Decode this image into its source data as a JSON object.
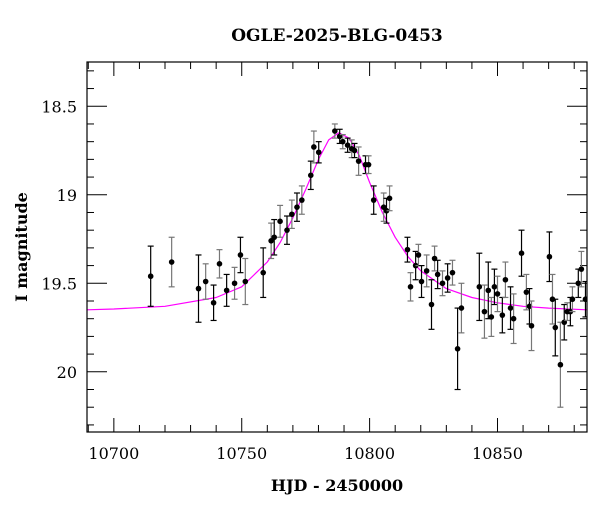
{
  "chart_data": {
    "type": "scatter",
    "title": "OGLE-2025-BLG-0453",
    "xlabel": "HJD - 2450000",
    "ylabel": "I magnitude",
    "xlim": [
      10689.5,
      10885
    ],
    "ylim": [
      20.34,
      18.25
    ],
    "y_inverted": true,
    "grid": false,
    "x_ticks": [
      "10700",
      "10750",
      "10800",
      "10850"
    ],
    "y_ticks": [
      "18.5",
      "19",
      "19.5",
      "20"
    ],
    "colors": {
      "points": "#000000",
      "errorbar_alt": "#777777",
      "model": "#ff00ff"
    },
    "series": [
      {
        "kind": "points-with-errorbars",
        "x": [
          10714.4,
          10722.6,
          10733.1,
          10735.9,
          10739.0,
          10741.3,
          10744.1,
          10747.2,
          10749.5,
          10751.4,
          10758.4,
          10761.5,
          10762.7,
          10765.0,
          10767.7,
          10769.6,
          10771.6,
          10773.5,
          10777.0,
          10778.2,
          10780.1,
          10786.4,
          10788.3,
          10789.5,
          10791.4,
          10793.0,
          10794.1,
          10795.7,
          10798.4,
          10799.6,
          10801.6,
          10805.5,
          10806.6,
          10807.8,
          10814.8,
          10816.0,
          10818.0,
          10819.1,
          10820.3,
          10822.3,
          10824.2,
          10825.4,
          10826.6,
          10828.5,
          10830.5,
          10832.4,
          10834.4,
          10835.9,
          10842.9,
          10844.9,
          10846.4,
          10847.6,
          10848.8,
          10850.0,
          10851.9,
          10853.1,
          10855.1,
          10856.3,
          10859.4,
          10861.3,
          10862.5,
          10863.3,
          10870.3,
          10871.5,
          10872.6,
          10874.6,
          10876.1,
          10877.3,
          10878.5,
          10879.3,
          10881.6,
          10882.8,
          10884.4
        ],
        "y": [
          19.46,
          19.38,
          19.53,
          19.49,
          19.61,
          19.39,
          19.54,
          19.5,
          19.34,
          19.49,
          19.44,
          19.26,
          19.24,
          19.15,
          19.2,
          19.11,
          19.07,
          19.03,
          18.89,
          18.73,
          18.76,
          18.64,
          18.67,
          18.7,
          18.72,
          18.74,
          18.75,
          18.81,
          18.83,
          18.83,
          19.03,
          19.07,
          19.09,
          19.02,
          19.31,
          19.52,
          19.4,
          19.34,
          19.49,
          19.43,
          19.62,
          19.36,
          19.45,
          19.5,
          19.47,
          19.44,
          19.87,
          19.64,
          19.52,
          19.66,
          19.54,
          19.69,
          19.52,
          19.56,
          19.68,
          19.48,
          19.64,
          19.7,
          19.33,
          19.55,
          19.63,
          19.74,
          19.35,
          19.59,
          19.75,
          19.96,
          19.72,
          19.66,
          19.66,
          19.59,
          19.5,
          19.42,
          19.59
        ],
        "err": [
          0.17,
          0.14,
          0.19,
          0.1,
          0.1,
          0.08,
          0.09,
          0.09,
          0.1,
          0.13,
          0.14,
          0.1,
          0.1,
          0.09,
          0.08,
          0.08,
          0.08,
          0.08,
          0.08,
          0.09,
          0.06,
          0.04,
          0.04,
          0.04,
          0.04,
          0.05,
          0.04,
          0.08,
          0.05,
          0.05,
          0.08,
          0.08,
          0.07,
          0.07,
          0.07,
          0.08,
          0.08,
          0.06,
          0.09,
          0.09,
          0.14,
          0.07,
          0.08,
          0.07,
          0.08,
          0.07,
          0.23,
          0.14,
          0.19,
          0.15,
          0.16,
          0.11,
          0.1,
          0.1,
          0.1,
          0.1,
          0.12,
          0.14,
          0.13,
          0.1,
          0.1,
          0.14,
          0.14,
          0.14,
          0.16,
          0.24,
          0.1,
          0.05,
          0.08,
          0.07,
          0.08,
          0.1,
          0.1
        ]
      },
      {
        "kind": "model-line",
        "x": [
          10689.5,
          10700,
          10720,
          10740,
          10750,
          10760,
          10765,
          10770,
          10775,
          10780,
          10784,
          10788,
          10792,
          10796,
          10800,
          10805,
          10810,
          10815,
          10820,
          10830,
          10840,
          10850,
          10860,
          10870,
          10885
        ],
        "y": [
          19.65,
          19.645,
          19.63,
          19.58,
          19.52,
          19.38,
          19.27,
          19.13,
          18.97,
          18.8,
          18.69,
          18.65,
          18.68,
          18.78,
          18.93,
          19.1,
          19.24,
          19.35,
          19.43,
          19.53,
          19.58,
          19.61,
          19.63,
          19.64,
          19.65
        ]
      }
    ]
  }
}
